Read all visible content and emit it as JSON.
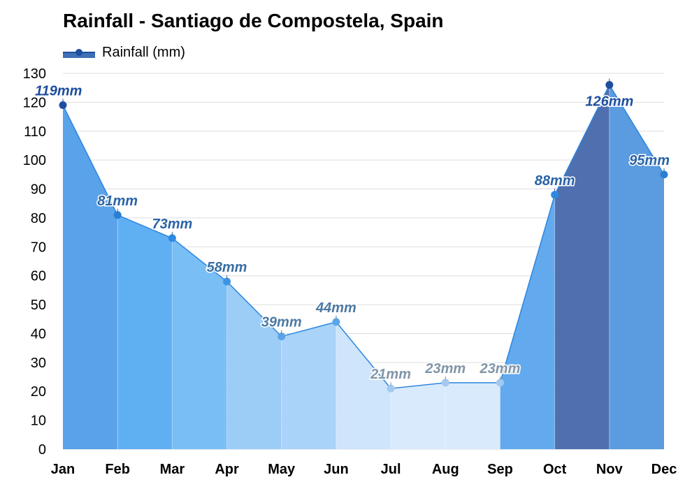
{
  "chart_data": {
    "type": "area",
    "title": "Rainfall - Santiago de Compostela, Spain",
    "legend": {
      "label": "Rainfall (mm)",
      "placement": "top-left"
    },
    "categories": [
      "Jan",
      "Feb",
      "Mar",
      "Apr",
      "May",
      "Jun",
      "Jul",
      "Aug",
      "Sep",
      "Oct",
      "Nov",
      "Dec"
    ],
    "series": [
      {
        "name": "Rainfall (mm)",
        "values": [
          119,
          81,
          73,
          58,
          39,
          44,
          21,
          23,
          23,
          88,
          126,
          95
        ],
        "labels": [
          "119mm",
          "81mm",
          "73mm",
          "58mm",
          "39mm",
          "44mm",
          "21mm",
          "23mm",
          "23mm",
          "88mm",
          "126mm",
          "95mm"
        ]
      }
    ],
    "ylim": [
      0,
      130
    ],
    "yticks": [
      0,
      10,
      20,
      30,
      40,
      50,
      60,
      70,
      80,
      90,
      100,
      110,
      120,
      130
    ],
    "grid": true
  },
  "colors": {
    "segment_fills": [
      "#5aa2ea",
      "#5fb0f3",
      "#79bef5",
      "#9ccdf7",
      "#a9d3f8",
      "#cfe5fb",
      "#d9eafc",
      "#d9eafc",
      "#62aaed",
      "#4f6fae",
      "#5b9be0"
    ],
    "marker_colors": [
      "#1d4e9f",
      "#2c7fd0",
      "#2e8ae0",
      "#3e92e3",
      "#5ba3e6",
      "#5aa7e8",
      "#a3c9ee",
      "#a3c9ee",
      "#a3c9ee",
      "#2e8ae0",
      "#1d4e9f",
      "#2c7fd0"
    ],
    "label_colors": [
      "#1d4e9f",
      "#2a63a6",
      "#2a63a6",
      "#3a6fa4",
      "#4e7aa3",
      "#4e7aa3",
      "#8195a8",
      "#8195a8",
      "#8195a8",
      "#2a63a6",
      "#1d4e9f",
      "#2a63a6"
    ],
    "line": "#2c86df",
    "grid": "#dddddd"
  }
}
